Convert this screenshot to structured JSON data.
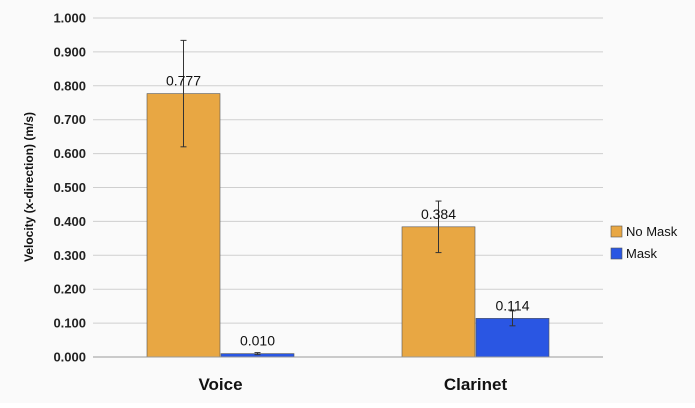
{
  "chart_data": {
    "type": "bar",
    "categories": [
      "Voice",
      "Clarinet"
    ],
    "series": [
      {
        "name": "No Mask",
        "values": [
          0.777,
          0.384
        ],
        "error": [
          0.157,
          0.076
        ],
        "color": "#e8a743"
      },
      {
        "name": "Mask",
        "values": [
          0.01,
          0.114
        ],
        "error": [
          0.003,
          0.022
        ],
        "color": "#2a56e3"
      }
    ],
    "data_labels": [
      [
        "0.777",
        "0.384"
      ],
      [
        "0.010",
        "0.114"
      ]
    ],
    "ylabel": "Velocity (x-direction) (m/s)",
    "xlabel": "",
    "ylim": [
      0,
      1.0
    ],
    "y_ticks": [
      "0.000",
      "0.100",
      "0.200",
      "0.300",
      "0.400",
      "0.500",
      "0.600",
      "0.700",
      "0.800",
      "0.900",
      "1.000"
    ],
    "grid": true,
    "legend_position": "right"
  }
}
